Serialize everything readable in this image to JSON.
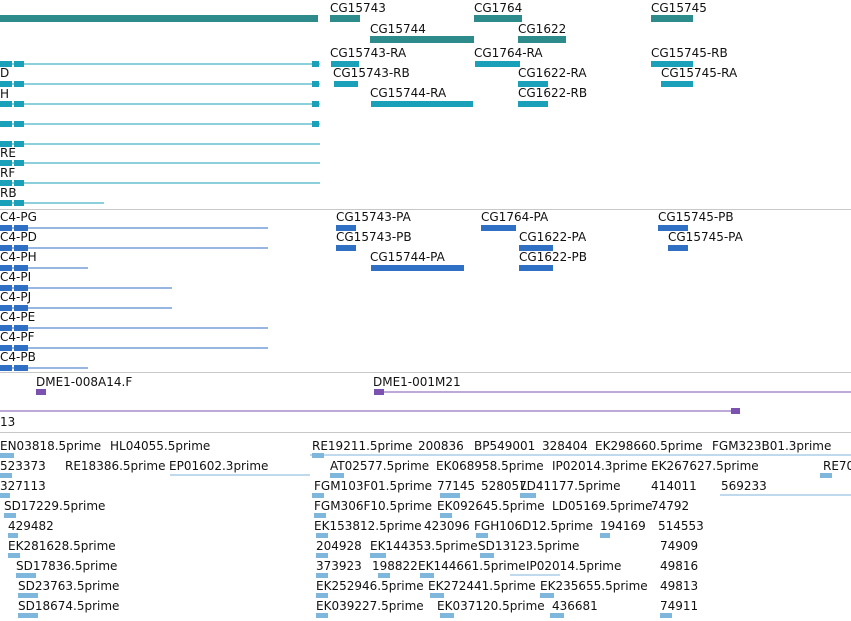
{
  "colors": {
    "gene": "#2e8b8b",
    "rna": "#1aa0b8",
    "protein": "#2f6fc4",
    "clone": "#7b52b0",
    "est": "#7fb6dc",
    "separator": "#c8c8c8"
  },
  "genes": [
    "CG15743",
    "CG15744",
    "CG1764",
    "CG1622",
    "CG15745"
  ],
  "transcripts": {
    "left": [
      "D",
      "H",
      "RE",
      "RF",
      "RB"
    ],
    "right": [
      "CG15743-RA",
      "CG15743-RB",
      "CG15744-RA",
      "CG1764-RA",
      "CG1622-RA",
      "CG1622-RB",
      "CG15745-RB",
      "CG15745-RA"
    ]
  },
  "proteins": {
    "left": [
      "C4-PG",
      "C4-PD",
      "C4-PH",
      "C4-PI",
      "C4-PJ",
      "C4-PE",
      "C4-PF",
      "C4-PB"
    ],
    "right": [
      "CG15743-PA",
      "CG15743-PB",
      "CG15744-PA",
      "CG1764-PA",
      "CG1622-PA",
      "CG1622-PB",
      "CG15745-PB",
      "CG15745-PA"
    ]
  },
  "clones": [
    "DME1-008A14.F",
    "DME1-001M21",
    "13"
  ],
  "ests": {
    "r0": [
      "EN03818.5prime",
      "HL04055.5prime",
      "RE19211.5prime",
      "200836",
      "BP549001",
      "328404",
      "EK298660.5prime",
      "FGM323B01.3prime"
    ],
    "r1": [
      "523373",
      "RE18386.5prime",
      "EP01602.3prime",
      "AT02577.5prime",
      "EK068958.5prime",
      "IP02014.3prime",
      "EK267627.5prime",
      "RE70"
    ],
    "r2": [
      "327113",
      "FGM103F01.5prime",
      "77145",
      "528057",
      "LD41177.5prime",
      "414011",
      "569233"
    ],
    "r3": [
      "SD17229.5prime",
      "FGM306F10.5prime",
      "EK092645.5prime",
      "LD05169.5prime",
      "74792"
    ],
    "r4": [
      "429482",
      "EK153812.5prime",
      "423096",
      "FGH106D12.5prime",
      "194169",
      "514553"
    ],
    "r5": [
      "EK281628.5prime",
      "204928",
      "EK144353.5prime",
      "SD13123.5prime",
      "74909"
    ],
    "r6": [
      "SD17836.5prime",
      "373923",
      "198822",
      "EK144661.5prime",
      "IP02014.5prime",
      "49816"
    ],
    "r7": [
      "SD23763.5prime",
      "EK252946.5prime",
      "EK272441.5prime",
      "EK235655.5prime",
      "49813"
    ],
    "r8": [
      "SD18674.5prime",
      "EK039227.5prime",
      "EK037120.5prime",
      "436681",
      "74911"
    ]
  }
}
